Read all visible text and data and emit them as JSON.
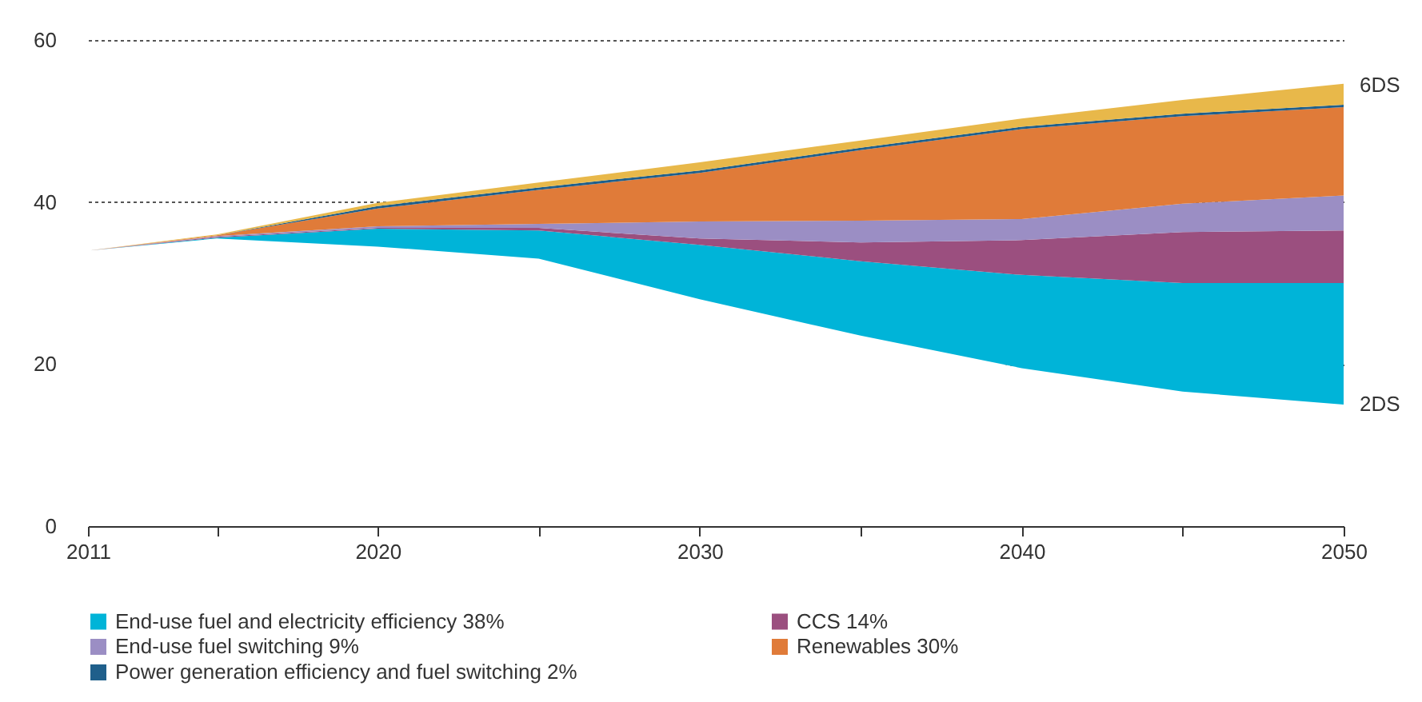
{
  "chart_data": {
    "type": "area",
    "stacked": true,
    "x": [
      2011,
      2015,
      2020,
      2025,
      2030,
      2035,
      2040,
      2045,
      2050
    ],
    "series": [
      {
        "color": "#ffffff",
        "values": [
          34,
          35.5,
          34.5,
          33,
          28,
          23.5,
          19.5,
          16.6,
          15
        ]
      },
      {
        "name": "End-use fuel and electricity efficiency 38%",
        "color": "#00b4d8",
        "values": [
          0,
          0.1,
          2.2,
          3.5,
          6.7,
          9.2,
          11.5,
          13.4,
          15
        ]
      },
      {
        "name": "CCS 14%",
        "color": "#9b4f7f",
        "values": [
          0,
          0.1,
          0.1,
          0.3,
          0.8,
          2.3,
          4.3,
          6.3,
          6.5
        ]
      },
      {
        "name": "End-use fuel switching 9%",
        "color": "#9b8ec4",
        "values": [
          0,
          0.1,
          0.2,
          0.5,
          2.1,
          2.7,
          2.6,
          3.5,
          4.3
        ]
      },
      {
        "name": "Renewables 30%",
        "color": "#e07b39",
        "values": [
          0,
          0.1,
          2.2,
          4.2,
          6.0,
          8.7,
          11.1,
          10.8,
          10.9
        ]
      },
      {
        "name": "Power generation efficiency and fuel switching 2%",
        "color": "#1f5f8b",
        "values": [
          0,
          0,
          0.3,
          0.3,
          0.3,
          0.3,
          0.3,
          0.3,
          0.3
        ]
      },
      {
        "color": "#e8b84a",
        "values": [
          0,
          0.1,
          0.4,
          0.6,
          1.0,
          0.9,
          1.0,
          1.7,
          2.6
        ]
      }
    ],
    "xlim": [
      2011,
      2050
    ],
    "xticks": [
      2011,
      {
        "value": 2015,
        "label": null
      },
      2020,
      {
        "value": 2025,
        "label": null
      },
      2030,
      {
        "value": 2035,
        "label": null
      },
      2040,
      {
        "value": 2045,
        "label": null
      },
      2050
    ],
    "ylim": [
      0,
      60
    ],
    "yticks": [
      0,
      20,
      40,
      60
    ],
    "grid": "y",
    "legend": "bottom",
    "annotations": [
      {
        "text": "6DS",
        "x": 2050,
        "y": 54.4
      },
      {
        "text": "2DS",
        "x": 2050,
        "y": 15
      }
    ]
  }
}
